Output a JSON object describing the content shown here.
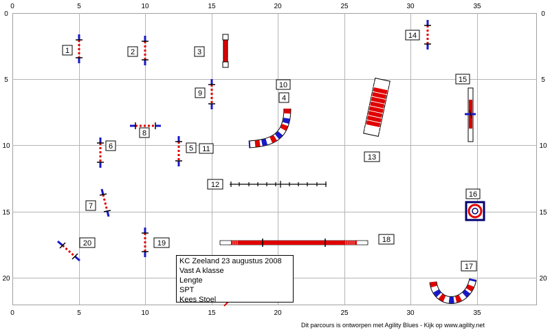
{
  "axes": {
    "x_ticks": [
      "0",
      "5",
      "10",
      "15",
      "20",
      "25",
      "30",
      "35"
    ],
    "y_ticks": [
      "0",
      "5",
      "10",
      "15",
      "20"
    ]
  },
  "labels": [
    {
      "text": "1"
    },
    {
      "text": "2"
    },
    {
      "text": "3"
    },
    {
      "text": "14"
    },
    {
      "text": "15"
    },
    {
      "text": "9"
    },
    {
      "text": "10"
    },
    {
      "text": "4"
    },
    {
      "text": "8"
    },
    {
      "text": "6"
    },
    {
      "text": "5"
    },
    {
      "text": "11"
    },
    {
      "text": "13"
    },
    {
      "text": "12"
    },
    {
      "text": "7"
    },
    {
      "text": "16"
    },
    {
      "text": "20"
    },
    {
      "text": "19"
    },
    {
      "text": "18"
    },
    {
      "text": "17"
    }
  ],
  "info_box": {
    "line1": "KC Zeeland 23 augustus 2008",
    "line2": "Vast A klasse",
    "line3": "Lengte",
    "line4": "SPT",
    "line5": "Kees Stoel"
  },
  "footer": "Dit parcours is ontworpen met Agility Blues - Kijk op www.agility.net",
  "colors": {
    "grid": "#b4b4b4",
    "red": "#e00000",
    "blue": "#1818c8",
    "navy": "#000070"
  }
}
